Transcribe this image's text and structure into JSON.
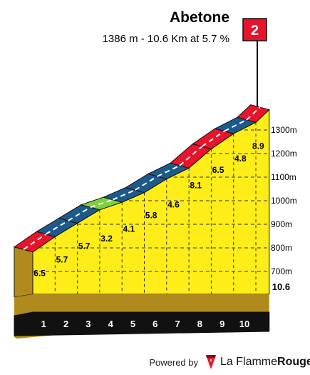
{
  "header": {
    "title": "Abetone",
    "subtitle": "1386 m - 10.6 Km at 5.7 %"
  },
  "finish_flag": {
    "label": "2",
    "color": "#e8142b"
  },
  "chart_data": {
    "type": "area",
    "title": "Abetone",
    "subtitle": "1386 m - 10.6 Km at 5.7 %",
    "xlabel": "",
    "ylabel": "",
    "x_unit": "km",
    "y_unit": "m",
    "total_distance": 10.6,
    "total_distance_label": "10.6",
    "ylim": [
      650,
      1400
    ],
    "y_ticks": [
      700,
      800,
      900,
      1000,
      1100,
      1200,
      1300
    ],
    "y_tick_labels": [
      "700m",
      "800m",
      "900m",
      "1000m",
      "1100m",
      "1200m",
      "1300m"
    ],
    "km_markers": [
      "1",
      "2",
      "3",
      "4",
      "5",
      "6",
      "7",
      "8",
      "9",
      "10"
    ],
    "segments": [
      {
        "km_start": 0,
        "km_end": 1,
        "gradient": 6.5,
        "label": "6.5",
        "color": "#e8142b"
      },
      {
        "km_start": 1,
        "km_end": 2,
        "gradient": 5.7,
        "label": "5.7",
        "color": "#1d5a8c"
      },
      {
        "km_start": 2,
        "km_end": 3,
        "gradient": 5.7,
        "label": "5.7",
        "color": "#1d5a8c"
      },
      {
        "km_start": 3,
        "km_end": 4,
        "gradient": 3.2,
        "label": "3.2",
        "color": "#7dd03b"
      },
      {
        "km_start": 4,
        "km_end": 5,
        "gradient": 4.1,
        "label": "4.1",
        "color": "#1d5a8c"
      },
      {
        "km_start": 5,
        "km_end": 6,
        "gradient": 5.8,
        "label": "5.8",
        "color": "#1d5a8c"
      },
      {
        "km_start": 6,
        "km_end": 7,
        "gradient": 4.6,
        "label": "4.6",
        "color": "#1d5a8c"
      },
      {
        "km_start": 7,
        "km_end": 8,
        "gradient": 8.1,
        "label": "8.1",
        "color": "#e8142b"
      },
      {
        "km_start": 8,
        "km_end": 9,
        "gradient": 6.5,
        "label": "6.5",
        "color": "#e8142b"
      },
      {
        "km_start": 9,
        "km_end": 10,
        "gradient": 4.8,
        "label": "4.8",
        "color": "#1d5a8c"
      },
      {
        "km_start": 10,
        "km_end": 10.6,
        "gradient": 8.9,
        "label": "8.9",
        "color": "#e8142b"
      }
    ],
    "fill_color": "#ffed1a",
    "grid": true
  },
  "footer": {
    "powered_by": "Powered by",
    "brand_part1": "La Flamme",
    "brand_part2": "Rouge"
  }
}
